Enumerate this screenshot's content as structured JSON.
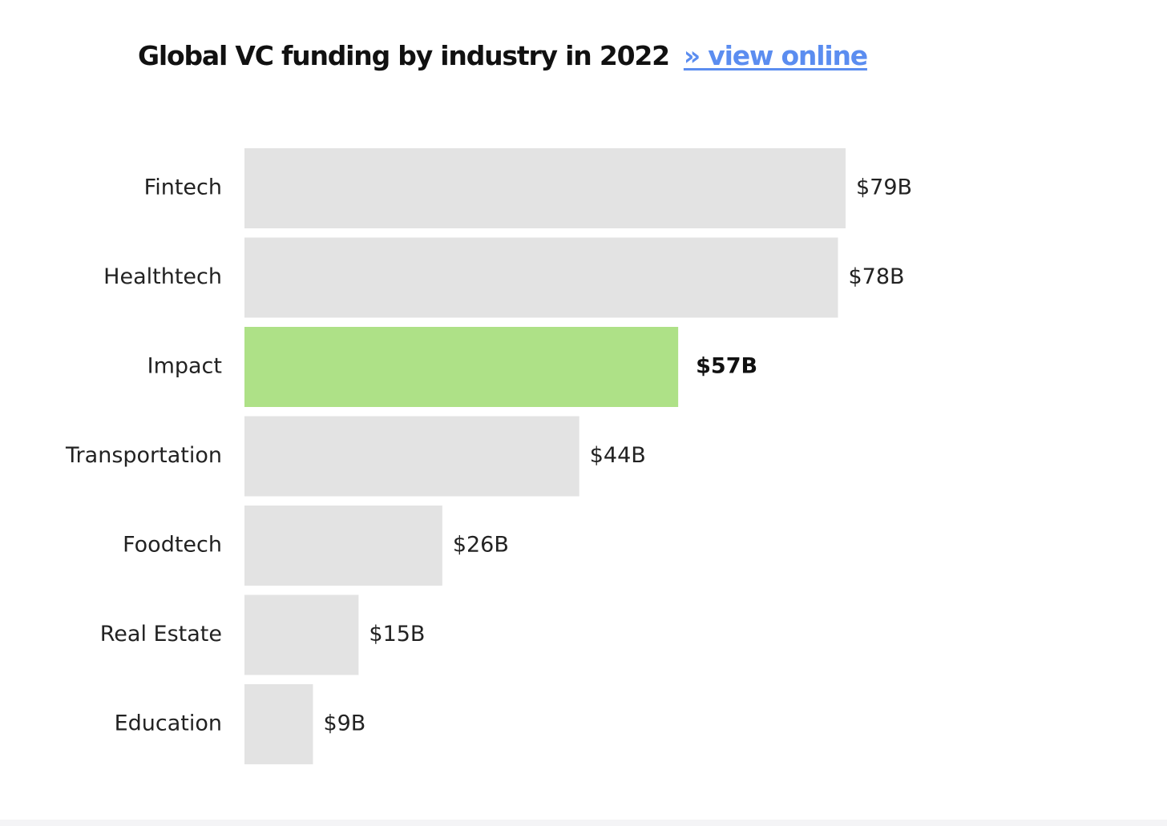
{
  "header": {
    "title": "Global VC funding by industry in 2022",
    "link_text": "» view online"
  },
  "colors": {
    "bar_default": "#e3e3e3",
    "bar_highlight": "#aee187",
    "link": "#5b8df0"
  },
  "chart_data": {
    "type": "bar",
    "orientation": "horizontal",
    "categories": [
      "Fintech",
      "Healthtech",
      "Impact",
      "Transportation",
      "Foodtech",
      "Real Estate",
      "Education"
    ],
    "values": [
      79,
      78,
      57,
      44,
      26,
      15,
      9
    ],
    "value_labels": [
      "$79B",
      "$78B",
      "$57B",
      "$44B",
      "$26B",
      "$15B",
      "$9B"
    ],
    "highlight_category": "Impact",
    "unit": "$B",
    "xlim": [
      0,
      79
    ],
    "grid": false,
    "legend": "none"
  }
}
